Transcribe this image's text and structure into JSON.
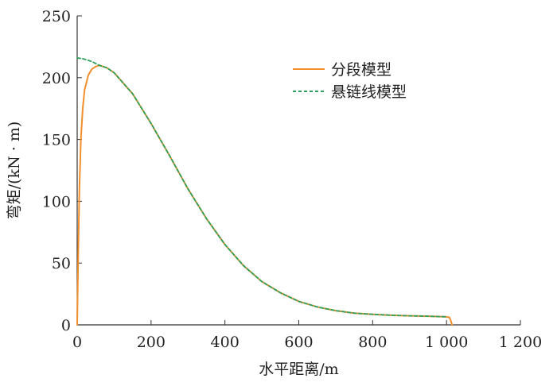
{
  "chart_data": {
    "type": "line",
    "xlabel": "水平距离/m",
    "ylabel": "弯矩/(kN · m)",
    "xlim": [
      0,
      1200
    ],
    "ylim": [
      0,
      250
    ],
    "x_ticks": [
      0,
      200,
      400,
      600,
      800,
      1000,
      1200
    ],
    "x_tick_labels": [
      "0",
      "200",
      "400",
      "600",
      "800",
      "1 000",
      "1 200"
    ],
    "y_ticks": [
      0,
      50,
      100,
      150,
      200,
      250
    ],
    "y_tick_labels": [
      "0",
      "50",
      "100",
      "150",
      "200",
      "250"
    ],
    "grid": false,
    "legend_position": "top-right",
    "series": [
      {
        "name": "分段模型",
        "color": "#f28e2b",
        "style": "solid",
        "x": [
          0,
          3,
          6,
          10,
          15,
          20,
          30,
          40,
          50,
          60,
          80,
          100,
          150,
          200,
          250,
          300,
          350,
          400,
          450,
          500,
          550,
          600,
          650,
          700,
          750,
          800,
          850,
          900,
          950,
          1000,
          1008,
          1012,
          1015
        ],
        "y": [
          0,
          60,
          110,
          150,
          175,
          190,
          202,
          207,
          209,
          210,
          208,
          204,
          187,
          163,
          137,
          110,
          86,
          65,
          48,
          35,
          26,
          19,
          14.5,
          11.5,
          9.5,
          8.5,
          7.8,
          7.3,
          7,
          6.5,
          6,
          3,
          0
        ]
      },
      {
        "name": "悬链线模型",
        "color": "#2ca05a",
        "style": "dashed",
        "x": [
          0,
          20,
          40,
          60,
          80,
          100,
          150,
          200,
          250,
          300,
          350,
          400,
          450,
          500,
          550,
          600,
          650,
          700,
          750,
          800,
          850,
          900,
          950,
          1000
        ],
        "y": [
          216,
          215,
          213,
          210,
          208,
          204,
          187,
          163,
          137,
          110,
          86,
          65,
          48,
          35,
          26,
          19,
          14.5,
          11.5,
          9.5,
          8.5,
          7.8,
          7.3,
          7,
          6.5
        ]
      }
    ]
  }
}
